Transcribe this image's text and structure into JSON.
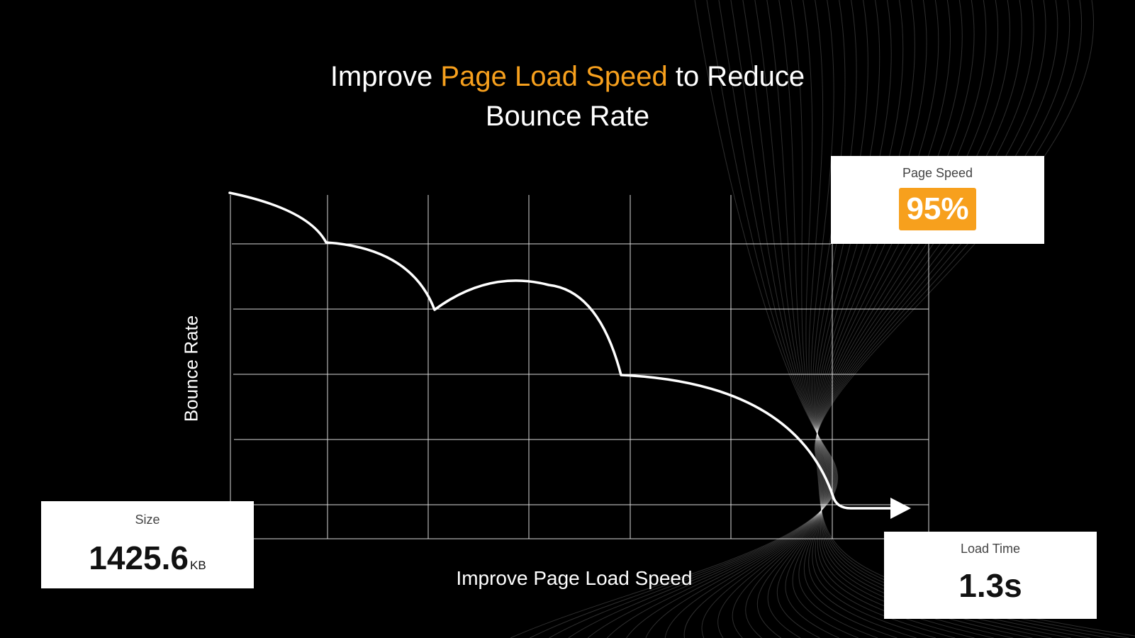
{
  "title": {
    "before": "Improve ",
    "highlight": "Page Load Speed",
    "after": " to Reduce",
    "line2": "Bounce Rate"
  },
  "axes": {
    "y_label": "Bounce Rate",
    "x_label": "Improve Page Load Speed"
  },
  "cards": {
    "size": {
      "label": "Size",
      "value": "1425.6",
      "unit": "KB"
    },
    "page_speed": {
      "label": "Page Speed",
      "value": "95%"
    },
    "load_time": {
      "label": "Load Time",
      "value": "1.3s"
    }
  },
  "colors": {
    "accent": "#f7a01d",
    "background": "#000000",
    "grid": "#ffffff",
    "curve": "#ffffff"
  },
  "icons": {
    "arrow": "arrow-right-icon"
  }
}
